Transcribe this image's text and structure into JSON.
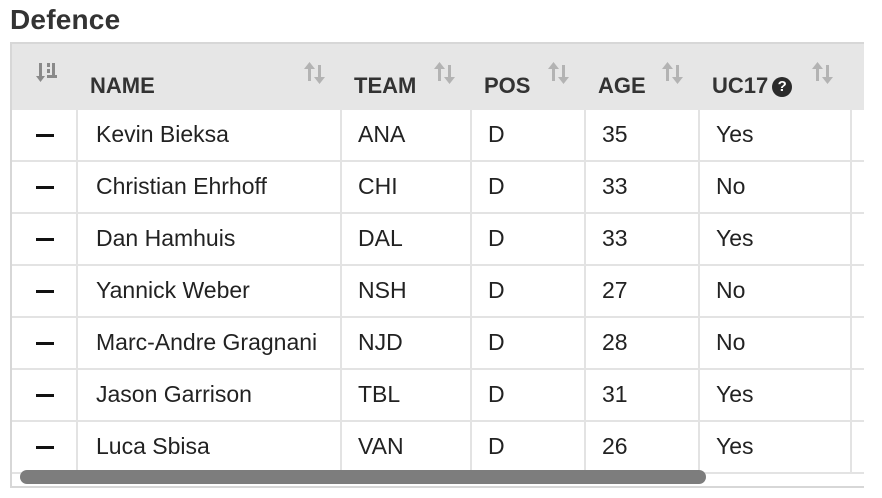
{
  "section": {
    "title": "Defence"
  },
  "columns": [
    {
      "key": "rank",
      "label": ""
    },
    {
      "key": "name",
      "label": "NAME"
    },
    {
      "key": "team",
      "label": "TEAM"
    },
    {
      "key": "pos",
      "label": "POS"
    },
    {
      "key": "age",
      "label": "AGE"
    },
    {
      "key": "uc17",
      "label": "UC17",
      "help_icon": "?"
    }
  ],
  "rows": [
    {
      "rank": "—",
      "name": "Kevin Bieksa",
      "team": "ANA",
      "pos": "D",
      "age": "35",
      "uc17": "Yes"
    },
    {
      "rank": "—",
      "name": "Christian Ehrhoff",
      "team": "CHI",
      "pos": "D",
      "age": "33",
      "uc17": "No"
    },
    {
      "rank": "—",
      "name": "Dan Hamhuis",
      "team": "DAL",
      "pos": "D",
      "age": "33",
      "uc17": "Yes"
    },
    {
      "rank": "—",
      "name": "Yannick Weber",
      "team": "NSH",
      "pos": "D",
      "age": "27",
      "uc17": "No"
    },
    {
      "rank": "—",
      "name": "Marc-Andre Gragnani",
      "team": "NJD",
      "pos": "D",
      "age": "28",
      "uc17": "No"
    },
    {
      "rank": "—",
      "name": "Jason Garrison",
      "team": "TBL",
      "pos": "D",
      "age": "31",
      "uc17": "Yes"
    },
    {
      "rank": "—",
      "name": "Luca Sbisa",
      "team": "VAN",
      "pos": "D",
      "age": "26",
      "uc17": "Yes"
    }
  ],
  "icons": {
    "rank_sort": "sort-numeric-down-icon",
    "column_sort": "sort-icon",
    "help": "question-circle-icon"
  },
  "colors": {
    "header_bg": "#e6e6e6",
    "border": "#e3e3e3",
    "scroll_thumb": "#7d7d7d"
  }
}
